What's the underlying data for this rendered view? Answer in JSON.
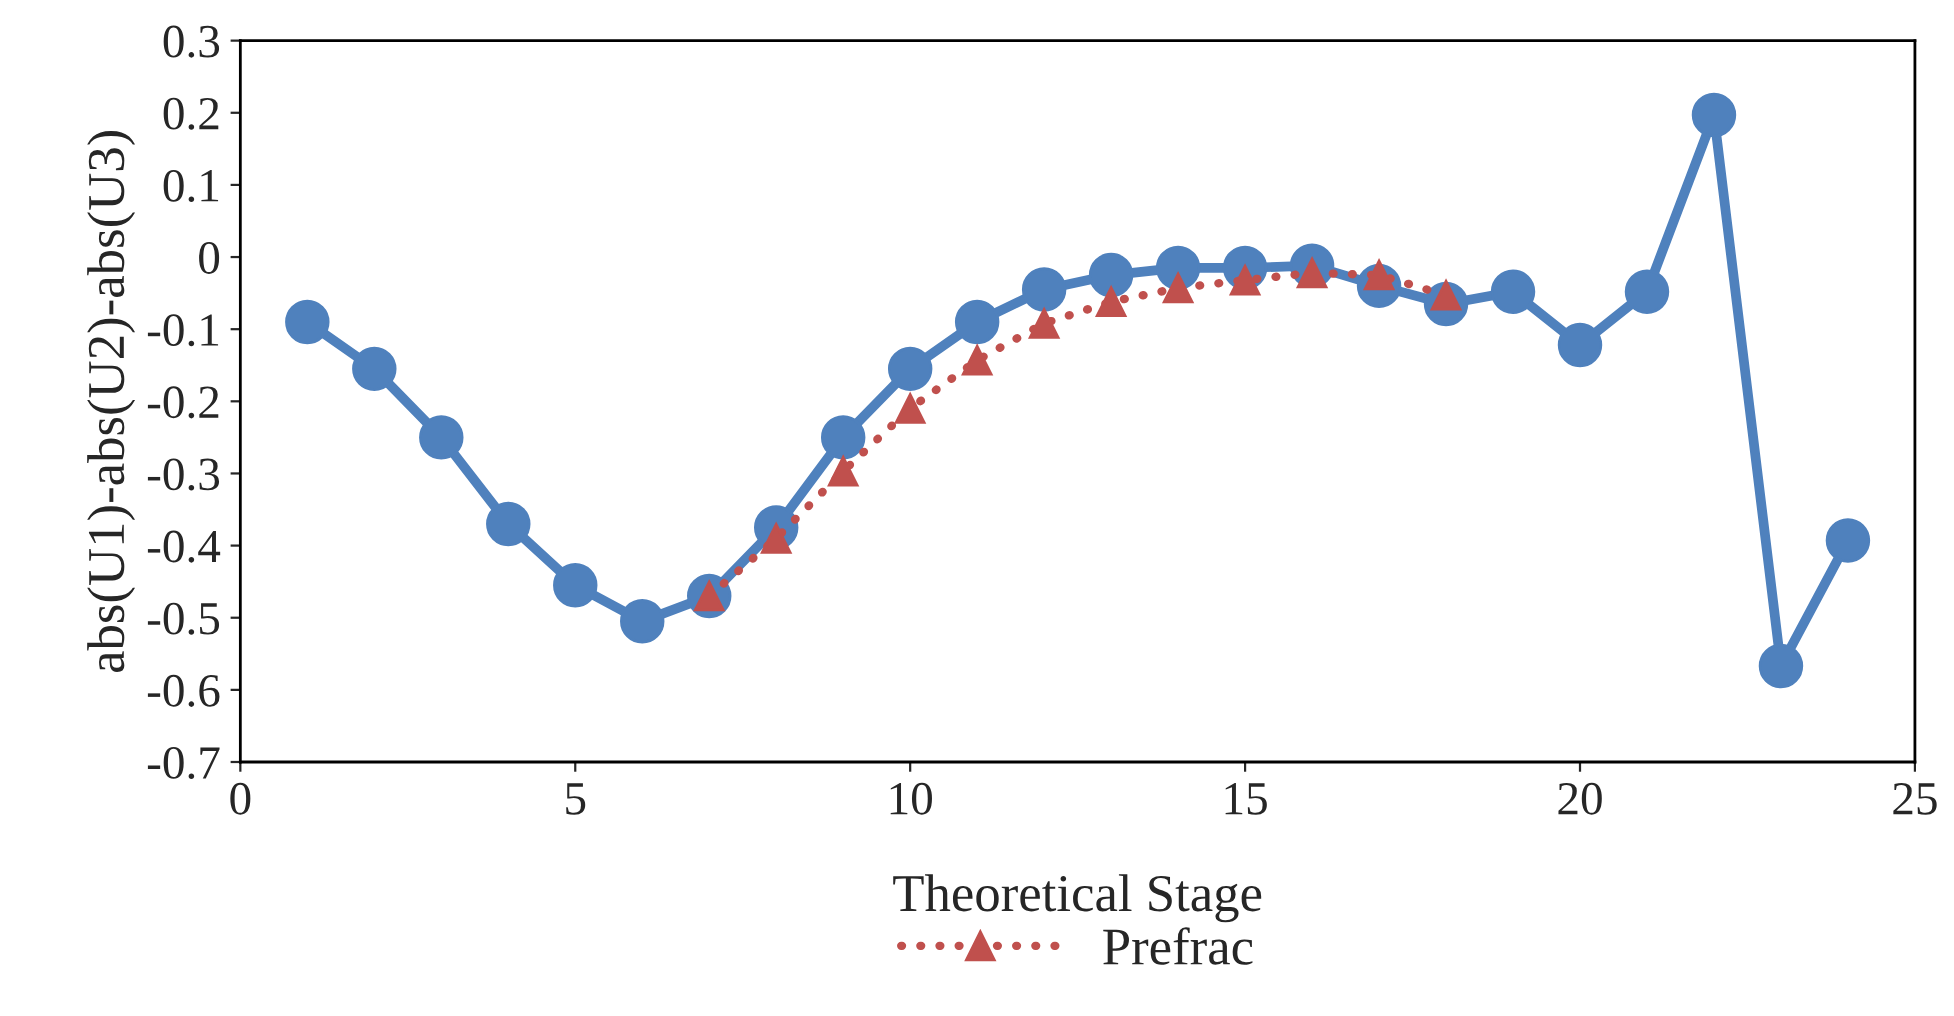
{
  "chart_data": {
    "type": "line",
    "xlabel": "Theoretical Stage",
    "ylabel": "abs(U1)-abs(U2)-abs(U3)",
    "xlim": [
      0,
      25
    ],
    "xticks": [
      0,
      5,
      10,
      15,
      20,
      25
    ],
    "ylim": [
      -0.7,
      0.3
    ],
    "yticks": [
      -0.7,
      -0.6,
      -0.5,
      -0.4,
      -0.3,
      -0.2,
      -0.1,
      0,
      0.1,
      0.2,
      0.3
    ],
    "grid": false,
    "legend": "bottom",
    "series": [
      {
        "color": "#4f81bd",
        "marker": "circle",
        "line_style": "solid",
        "x": [
          1,
          2,
          3,
          4,
          5,
          6,
          7,
          8,
          9,
          10,
          11,
          12,
          13,
          14,
          15,
          16,
          17,
          18,
          19,
          20,
          21,
          22,
          23,
          24
        ],
        "values": [
          -0.09,
          -0.155,
          -0.25,
          -0.37,
          -0.455,
          -0.505,
          -0.47,
          -0.375,
          -0.25,
          -0.155,
          -0.09,
          -0.045,
          -0.025,
          -0.015,
          -0.015,
          -0.012,
          -0.04,
          -0.065,
          -0.048,
          -0.122,
          -0.048,
          0.197,
          -0.567,
          -0.393
        ]
      },
      {
        "name": "Prefrac",
        "color": "#c0504d",
        "marker": "triangle",
        "line_style": "dotted",
        "x": [
          7,
          8,
          9,
          10,
          11,
          12,
          13,
          14,
          15,
          16,
          17,
          18
        ],
        "values": [
          -0.47,
          -0.39,
          -0.297,
          -0.21,
          -0.143,
          -0.092,
          -0.062,
          -0.043,
          -0.032,
          -0.022,
          -0.025,
          -0.053
        ]
      }
    ]
  }
}
